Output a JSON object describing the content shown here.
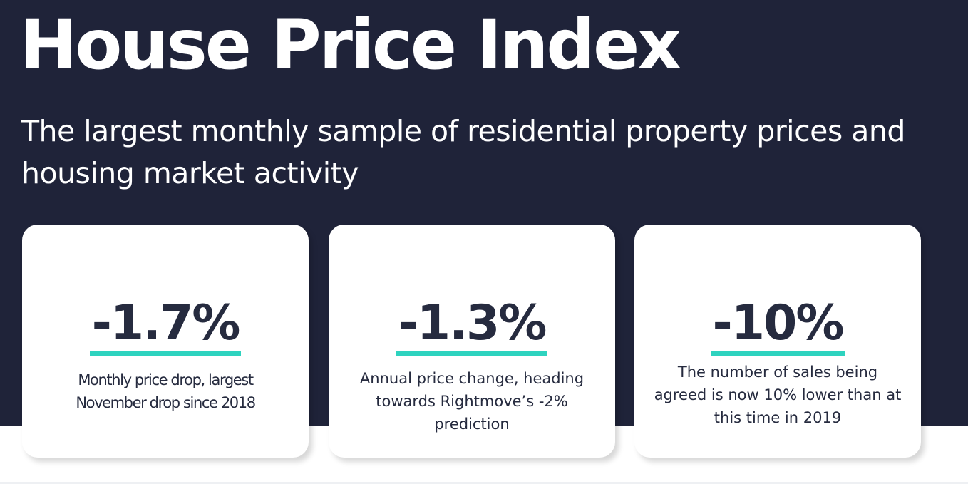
{
  "header": {
    "title": "House Price Index",
    "subtitle": "The largest monthly sample of residential property prices and housing market activity"
  },
  "stats": [
    {
      "value": "-1.7%",
      "caption": "Monthly price drop, largest November drop since 2018"
    },
    {
      "value": "-1.3%",
      "caption": "Annual price change, heading towards Rightmove’s -2% prediction"
    },
    {
      "value": "-10%",
      "caption": "The number of sales being agreed is now 10% lower than at this time in 2019"
    }
  ],
  "colors": {
    "background": "#1f2339",
    "card": "#ffffff",
    "text_dark": "#262b3f",
    "accent": "#2ed3bf"
  }
}
